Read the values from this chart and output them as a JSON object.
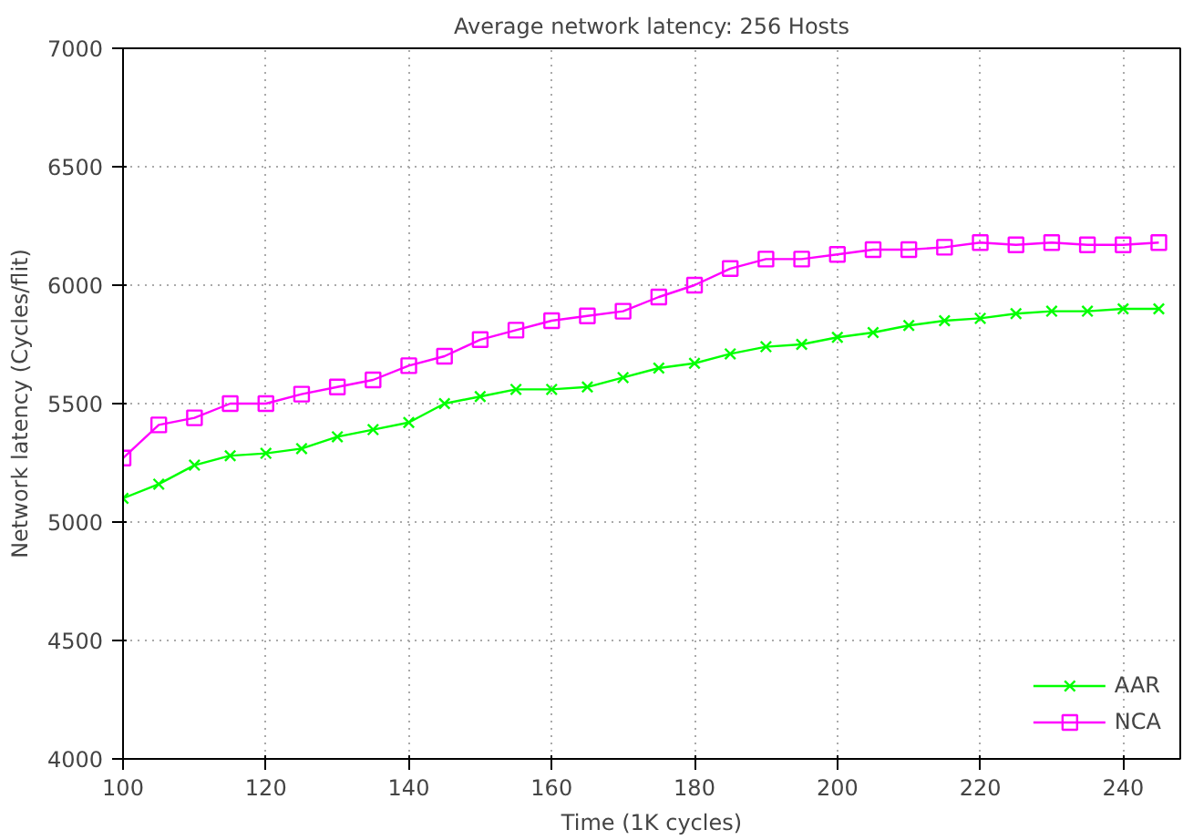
{
  "chart_data": {
    "type": "line",
    "title": "Average network latency: 256 Hosts",
    "xlabel": "Time (1K cycles)",
    "ylabel": "Network latency (Cycles/flit)",
    "x": [
      100,
      105,
      110,
      115,
      120,
      125,
      130,
      135,
      140,
      145,
      150,
      155,
      160,
      165,
      170,
      175,
      180,
      185,
      190,
      195,
      200,
      205,
      210,
      215,
      220,
      225,
      230,
      235,
      240,
      245
    ],
    "series": [
      {
        "name": "AAR",
        "color": "#00ff00",
        "marker": "cross",
        "values": [
          5100,
          5160,
          5240,
          5280,
          5290,
          5310,
          5360,
          5390,
          5420,
          5500,
          5530,
          5560,
          5560,
          5570,
          5610,
          5650,
          5670,
          5710,
          5740,
          5750,
          5780,
          5800,
          5830,
          5850,
          5860,
          5880,
          5890,
          5890,
          5900,
          5900
        ]
      },
      {
        "name": "NCA",
        "color": "#ff00ff",
        "marker": "square",
        "values": [
          5270,
          5410,
          5440,
          5500,
          5500,
          5540,
          5570,
          5600,
          5660,
          5700,
          5770,
          5810,
          5850,
          5870,
          5890,
          5950,
          6000,
          6070,
          6110,
          6110,
          6130,
          6150,
          6150,
          6160,
          6180,
          6170,
          6180,
          6170,
          6170,
          6180
        ]
      }
    ],
    "xlim": [
      100,
      248
    ],
    "ylim": [
      4000,
      7000
    ],
    "xticks": [
      100,
      120,
      140,
      160,
      180,
      200,
      220,
      240
    ],
    "yticks": [
      4000,
      4500,
      5000,
      5500,
      6000,
      6500,
      7000
    ],
    "grid": true,
    "legend": "bottom right",
    "line_style": "solid"
  }
}
